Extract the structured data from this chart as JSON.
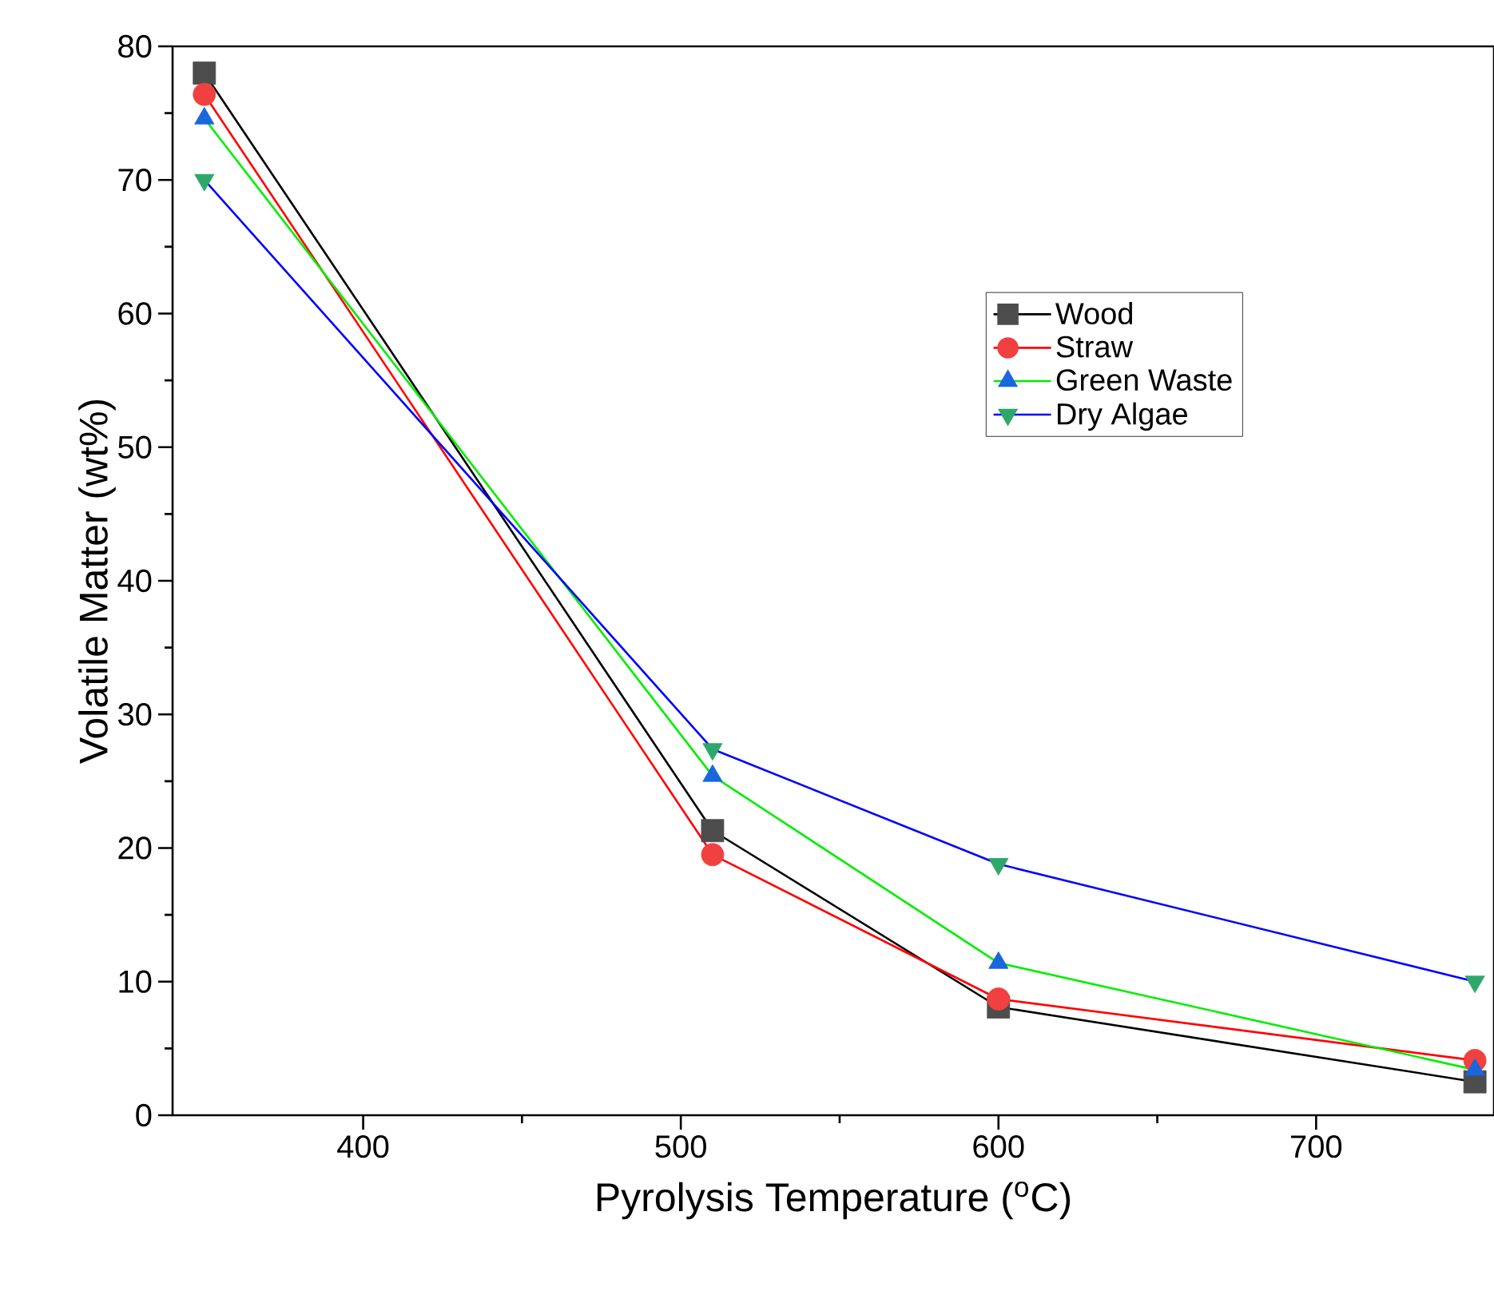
{
  "chart_data": {
    "type": "line",
    "xlabel": "Pyrolysis Temperature ($^{o}$C)",
    "ylabel": "Volatile Matter (wt%)",
    "x": [
      350,
      510,
      600,
      750
    ],
    "xlim": [
      340,
      756
    ],
    "xticks": [
      400,
      500,
      600,
      700
    ],
    "ylim": [
      0,
      80
    ],
    "yticks": [
      0,
      10,
      20,
      30,
      40,
      50,
      60,
      70,
      80
    ],
    "legend": "top right",
    "grid": false,
    "line_style": "solid",
    "series": [
      {
        "name": "Wood",
        "color": "#000000",
        "colors": [
          "#4d4d4d",
          "#4d4d4d",
          "#4d4d4d",
          "#4d4d4d"
        ],
        "marker": "square",
        "values": [
          78.0,
          21.3,
          8.1,
          2.5
        ]
      },
      {
        "name": "Straw",
        "color": "#ff0000",
        "colors": [
          "#f04040",
          "#f04040",
          "#f04040",
          "#f04040"
        ],
        "marker": "circle",
        "values": [
          76.4,
          19.5,
          8.7,
          4.1
        ]
      },
      {
        "name": "Green Waste",
        "color": "#00ee00",
        "colors": [
          "#1a66dd",
          "#1a66dd",
          "#1a66dd",
          "#1a66dd"
        ],
        "marker": "triangle",
        "values": [
          74.6,
          25.4,
          11.4,
          3.4
        ]
      },
      {
        "name": "Dry Algae",
        "color": "#0000ff",
        "colors": [
          "#2ea86a",
          "#2ea86a",
          "#2ea86a",
          "#2ea86a"
        ],
        "marker": "triangle_down",
        "values": [
          70.0,
          27.4,
          18.8,
          10.0
        ]
      }
    ]
  }
}
